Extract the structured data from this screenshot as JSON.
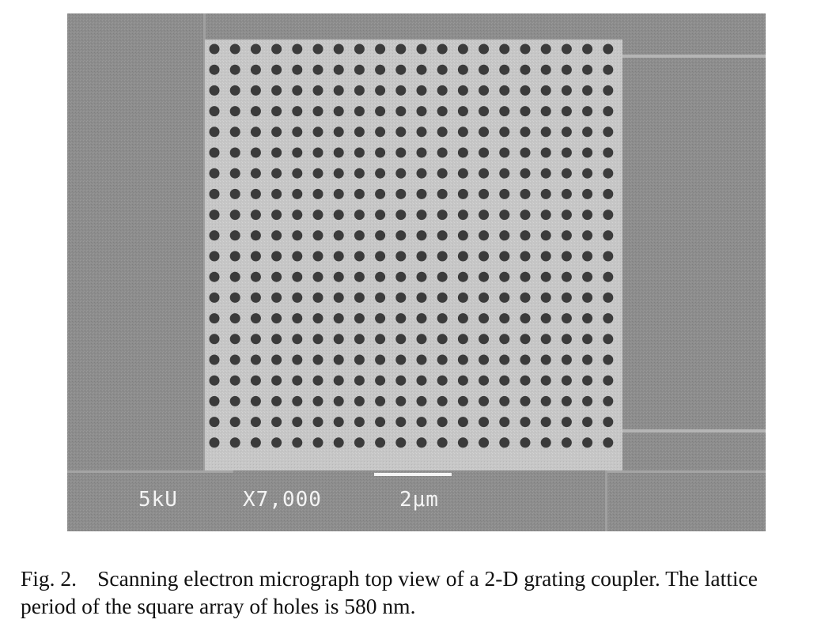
{
  "figure": {
    "sem_labels": {
      "voltage": "5kU",
      "magnification": "X7,000",
      "scale": "2μm"
    },
    "colors": {
      "background": "#8d8d8d",
      "grating": "#c9c9c9",
      "hole": "#3b3b3b",
      "text": "#f4f4f4"
    }
  },
  "caption": {
    "label": "Fig. 2.",
    "text": "Scanning electron micrograph top view of a 2-D grating coupler. The lattice period of the square array of holes is 580 nm."
  }
}
